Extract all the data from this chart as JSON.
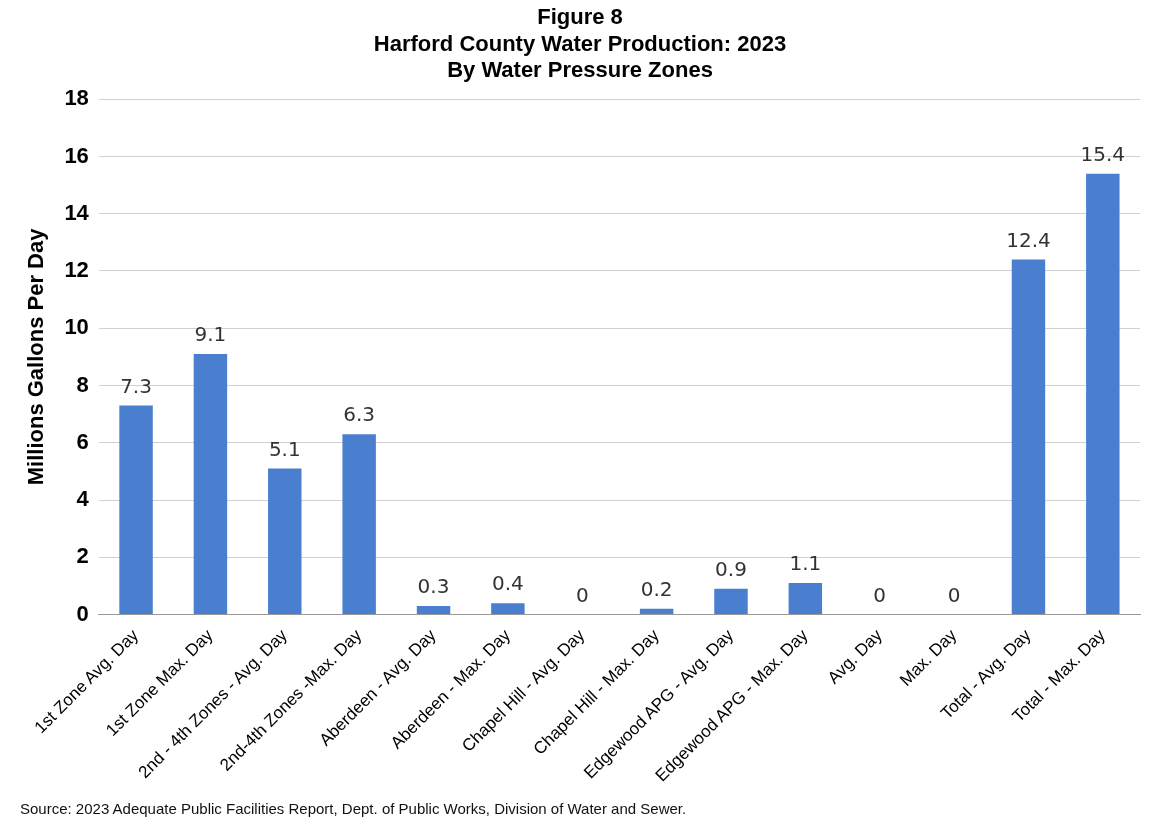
{
  "chart_data": {
    "type": "bar",
    "title": "Figure 8\nHarford County Water Production: 2023\nBy Water Pressure Zones",
    "ylabel": "Millions Gallons Per Day",
    "categories": [
      "1st Zone Avg. Day",
      "1st Zone Max. Day",
      "2nd - 4th Zones - Avg. Day",
      "2nd-4th Zones -Max. Day",
      "Aberdeen - Avg. Day",
      "Aberdeen - Max. Day",
      "Chapel Hill - Avg. Day",
      "Chapel Hill - Max. Day",
      "Edgewood APG - Avg. Day",
      "Edgewood APG - Max. Day",
      "Avg. Day",
      "Max. Day",
      "Total - Avg. Day",
      "Total - Max. Day"
    ],
    "values": [
      7.3,
      9.1,
      5.1,
      6.3,
      0.3,
      0.4,
      0,
      0.2,
      0.9,
      1.1,
      0,
      0,
      12.4,
      15.4
    ],
    "color": "#4a7fd0",
    "data_labels": true,
    "ylim": [
      0,
      18
    ],
    "yticks": [
      0,
      2,
      4,
      6,
      8,
      10,
      12,
      14,
      16,
      18
    ],
    "grid": "y",
    "legend": false,
    "annotations": [
      "Source: 2023 Adequate Public Facilities Report, Dept. of Public Works, Division of Water and Sewer."
    ]
  }
}
